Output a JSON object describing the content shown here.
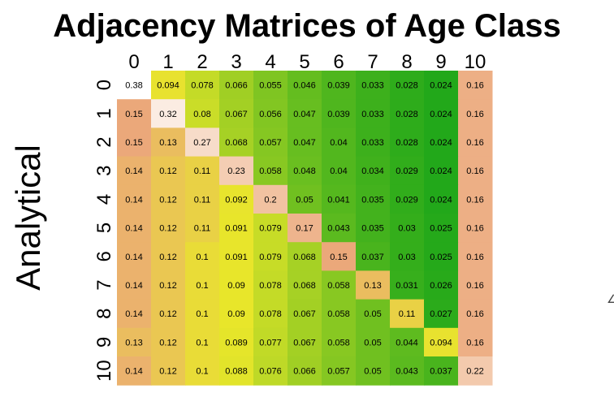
{
  "chart_data": {
    "type": "heatmap",
    "title": "Adjacency Matrices of Age Class",
    "ylabel": "Analytical",
    "xlabel": "",
    "x_categories": [
      "0",
      "1",
      "2",
      "3",
      "4",
      "5",
      "6",
      "7",
      "8",
      "9",
      "10"
    ],
    "y_categories": [
      "0",
      "1",
      "2",
      "3",
      "4",
      "5",
      "6",
      "7",
      "8",
      "9",
      "10"
    ],
    "values": [
      [
        "0.38",
        "0.094",
        "0.078",
        "0.066",
        "0.055",
        "0.046",
        "0.039",
        "0.033",
        "0.028",
        "0.024",
        "0.16"
      ],
      [
        "0.15",
        "0.32",
        "0.08",
        "0.067",
        "0.056",
        "0.047",
        "0.039",
        "0.033",
        "0.028",
        "0.024",
        "0.16"
      ],
      [
        "0.15",
        "0.13",
        "0.27",
        "0.068",
        "0.057",
        "0.047",
        "0.04",
        "0.033",
        "0.028",
        "0.024",
        "0.16"
      ],
      [
        "0.14",
        "0.12",
        "0.11",
        "0.23",
        "0.058",
        "0.048",
        "0.04",
        "0.034",
        "0.029",
        "0.024",
        "0.16"
      ],
      [
        "0.14",
        "0.12",
        "0.11",
        "0.092",
        "0.2",
        "0.05",
        "0.041",
        "0.035",
        "0.029",
        "0.024",
        "0.16"
      ],
      [
        "0.14",
        "0.12",
        "0.11",
        "0.091",
        "0.079",
        "0.17",
        "0.043",
        "0.035",
        "0.03",
        "0.025",
        "0.16"
      ],
      [
        "0.14",
        "0.12",
        "0.1",
        "0.091",
        "0.079",
        "0.068",
        "0.15",
        "0.037",
        "0.03",
        "0.025",
        "0.16"
      ],
      [
        "0.14",
        "0.12",
        "0.1",
        "0.09",
        "0.078",
        "0.068",
        "0.058",
        "0.13",
        "0.031",
        "0.026",
        "0.16"
      ],
      [
        "0.14",
        "0.12",
        "0.1",
        "0.09",
        "0.078",
        "0.067",
        "0.058",
        "0.05",
        "0.11",
        "0.027",
        "0.16"
      ],
      [
        "0.13",
        "0.12",
        "0.1",
        "0.089",
        "0.077",
        "0.067",
        "0.058",
        "0.05",
        "0.044",
        "0.094",
        "0.16"
      ],
      [
        "0.14",
        "0.12",
        "0.1",
        "0.088",
        "0.076",
        "0.066",
        "0.057",
        "0.05",
        "0.043",
        "0.037",
        "0.22"
      ]
    ],
    "colormap": {
      "low": "#22a81a",
      "mid": "#e8e62a",
      "high": "#eba87a",
      "max": "#ffffff"
    },
    "grid": false,
    "legend": "none"
  }
}
